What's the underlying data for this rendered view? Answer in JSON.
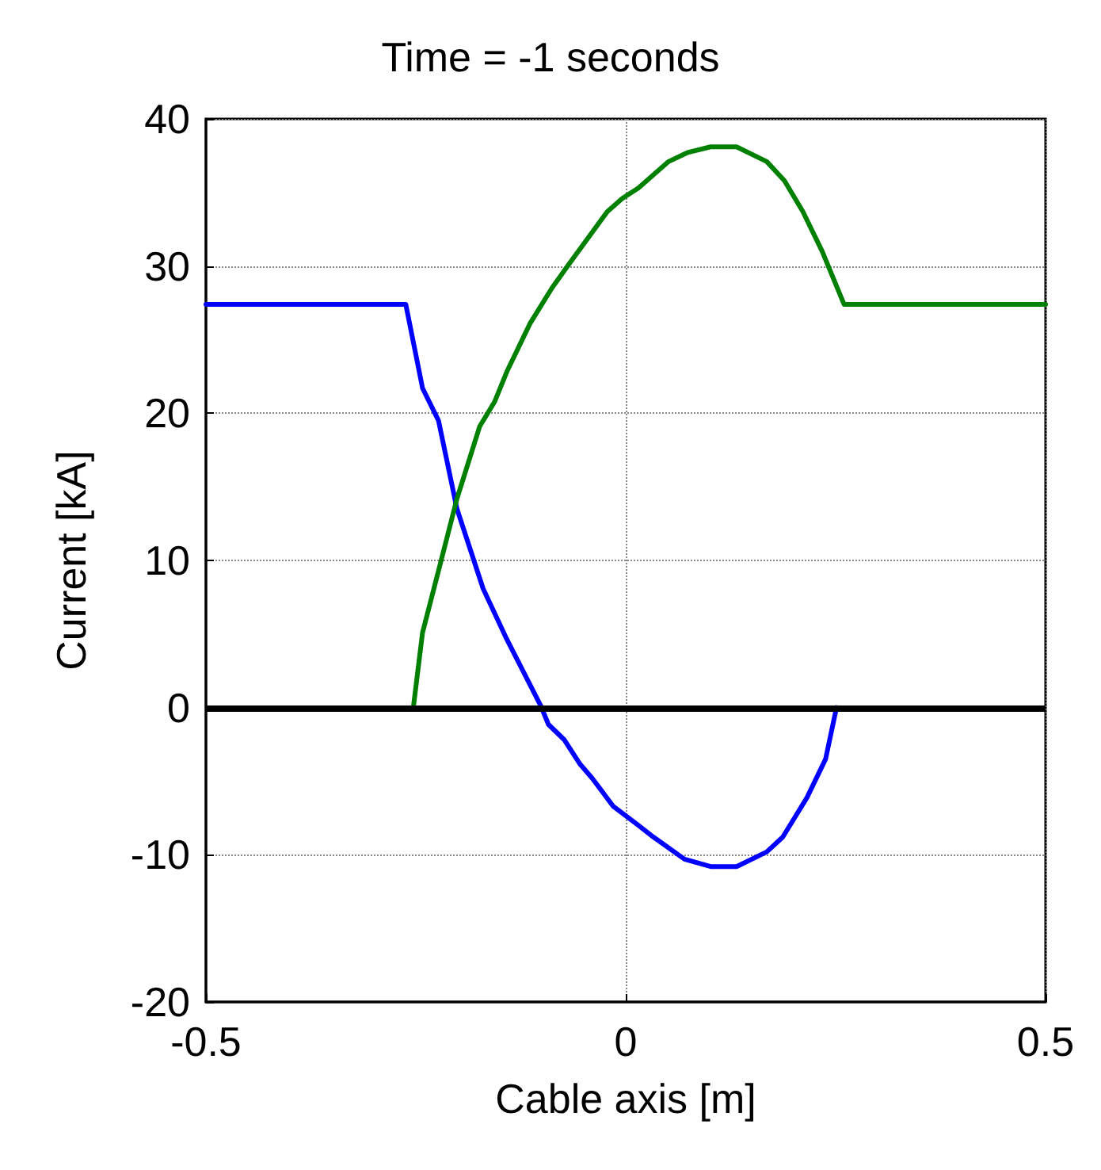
{
  "chart_data": {
    "type": "line",
    "title": "Time = -1 seconds",
    "xlabel": "Cable axis [m]",
    "ylabel": "Current [kA]",
    "xlim": [
      -0.5,
      0.5
    ],
    "xticks": [
      -0.5,
      0,
      0.5
    ],
    "ylim": [
      -20,
      40
    ],
    "yticks": [
      -20,
      -10,
      0,
      10,
      20,
      30,
      40
    ],
    "grid": true,
    "line_style": "solid",
    "marker": "none",
    "series": [
      {
        "color": "#0000ff",
        "x": [
          -0.5,
          -0.262,
          -0.242,
          -0.223,
          -0.201,
          -0.17,
          -0.143,
          -0.101,
          -0.092,
          -0.073,
          -0.055,
          -0.04,
          -0.015,
          0.015,
          0.033,
          0.07,
          0.101,
          0.132,
          0.168,
          0.187,
          0.216,
          0.238,
          0.251
        ],
        "values": [
          27.4,
          27.4,
          21.7,
          19.5,
          13.5,
          8.1,
          4.8,
          0.1,
          -1.15,
          -2.2,
          -3.8,
          -4.8,
          -6.7,
          -8.0,
          -8.8,
          -10.3,
          -10.8,
          -10.8,
          -9.8,
          -8.8,
          -6.1,
          -3.5,
          0
        ]
      },
      {
        "color": "#008000",
        "x": [
          -0.253,
          -0.242,
          -0.223,
          -0.201,
          -0.174,
          -0.156,
          -0.141,
          -0.114,
          -0.088,
          -0.068,
          -0.022,
          -0.004,
          0.015,
          0.051,
          0.073,
          0.101,
          0.132,
          0.168,
          0.189,
          0.211,
          0.234,
          0.26,
          0.5
        ],
        "values": [
          0,
          5.1,
          9.3,
          14.2,
          19.1,
          20.8,
          22.9,
          26.1,
          28.5,
          30.1,
          33.7,
          34.6,
          35.3,
          37.1,
          37.7,
          38.1,
          38.1,
          37.1,
          35.8,
          33.7,
          31.0,
          27.4,
          27.4
        ]
      }
    ],
    "ref_lines": [
      {
        "axis": "y",
        "value": 0,
        "color": "#000000",
        "line_style": "solid"
      }
    ]
  }
}
